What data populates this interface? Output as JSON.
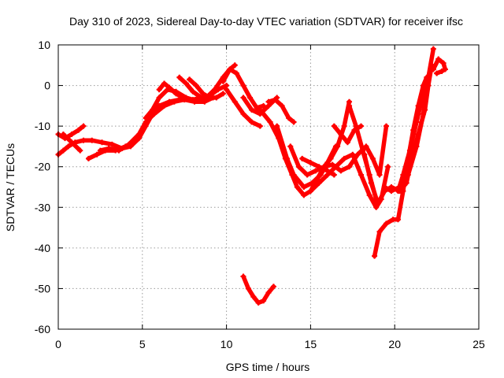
{
  "chart_data": {
    "type": "line",
    "title": "Day 310 of 2023, Sidereal Day-to-day VTEC variation (SDTVAR) for receiver ifsc",
    "xlabel": "GPS time / hours",
    "ylabel": "SDTVAR / TECUs",
    "xlim": [
      0,
      25
    ],
    "ylim": [
      -60,
      10
    ],
    "xticks": [
      0,
      5,
      10,
      15,
      20,
      25
    ],
    "yticks": [
      -60,
      -50,
      -40,
      -30,
      -20,
      -10,
      0,
      10
    ],
    "grid": true,
    "marker": "plus",
    "color": "#ff0000",
    "series": [
      {
        "x": [
          0,
          0.4,
          0.8,
          1.2,
          1.5
        ],
        "y": [
          -12,
          -13,
          -12,
          -11,
          -10
        ]
      },
      {
        "x": [
          0,
          0.3,
          0.6,
          1.0,
          1.5,
          2.0,
          2.6,
          3.2,
          3.8,
          4.3,
          4.8,
          5.2,
          5.6,
          6.0,
          6.6,
          7.2,
          7.8,
          8.3,
          8.8,
          9.3,
          9.8,
          10.2,
          10.5
        ],
        "y": [
          -17,
          -16,
          -15,
          -14,
          -13.5,
          -13.5,
          -14,
          -14.5,
          -15.5,
          -15,
          -13,
          -10,
          -7,
          -5,
          -4,
          -3.5,
          -3.5,
          -3.5,
          -3,
          -1,
          2,
          4,
          5
        ]
      },
      {
        "x": [
          0.3,
          0.8,
          1.3
        ],
        "y": [
          -12,
          -14,
          -16
        ]
      },
      {
        "x": [
          1.8,
          2.3,
          2.8,
          3.4,
          4.0
        ],
        "y": [
          -18,
          -17,
          -16,
          -16,
          -15
        ]
      },
      {
        "x": [
          2.5,
          3.0,
          3.6,
          4.2,
          4.8,
          5.2,
          5.7,
          6.3,
          6.9,
          7.5,
          8.1,
          8.7,
          9.2
        ],
        "y": [
          -16,
          -15.5,
          -16,
          -14.5,
          -12,
          -9,
          -7,
          -5,
          -4,
          -3.5,
          -4,
          -4,
          -3
        ]
      },
      {
        "x": [
          5.2,
          5.6,
          6.0,
          6.5,
          7.0,
          7.6,
          8.0,
          8.5
        ],
        "y": [
          -8,
          -6,
          -3,
          -1,
          -1.5,
          -3,
          -3.5,
          -3
        ]
      },
      {
        "x": [
          6.0,
          6.3,
          6.6,
          7.0,
          7.4
        ],
        "y": [
          -1,
          0.5,
          -0.5,
          -2,
          -3
        ]
      },
      {
        "x": [
          7.2,
          7.6,
          8.0,
          8.5,
          9.0,
          9.5,
          10.0
        ],
        "y": [
          2,
          0.5,
          -1.5,
          -3,
          -2.5,
          -1,
          0
        ]
      },
      {
        "x": [
          7.8,
          8.2,
          8.6,
          9.0,
          9.4,
          9.8
        ],
        "y": [
          1.5,
          0,
          -2,
          -3,
          -3,
          -2
        ]
      },
      {
        "x": [
          9.8,
          10.2,
          10.6,
          11.0,
          11.4,
          11.8,
          12.2
        ],
        "y": [
          1,
          4,
          3,
          0,
          -3,
          -5.5,
          -5
        ]
      },
      {
        "x": [
          10.0,
          10.5,
          11.0,
          11.5,
          12.0
        ],
        "y": [
          -1,
          -4,
          -7,
          -9,
          -10
        ]
      },
      {
        "x": [
          11.0,
          11.5,
          12.0,
          12.5,
          13.0
        ],
        "y": [
          -3,
          -6,
          -7,
          -5,
          -3
        ]
      },
      {
        "x": [
          12.5,
          12.9,
          13.3,
          13.7,
          14.0
        ],
        "y": [
          -4,
          -3.5,
          -5,
          -8,
          -9
        ]
      },
      {
        "x": [
          12.0,
          12.6,
          13.1,
          13.5,
          13.9,
          14.2,
          14.6,
          15.0,
          15.4,
          15.8,
          16.2,
          16.6,
          17.0,
          17.3
        ],
        "y": [
          -6,
          -9,
          -13,
          -18,
          -22,
          -25,
          -27,
          -26,
          -23,
          -20,
          -18,
          -15,
          -10,
          -4
        ]
      },
      {
        "x": [
          13.0,
          13.6,
          14.0,
          14.6,
          15.1,
          15.6,
          16.0,
          16.5
        ],
        "y": [
          -10,
          -18,
          -22,
          -25,
          -24,
          -22,
          -19,
          -15
        ]
      },
      {
        "x": [
          13.8,
          14.3,
          14.8,
          15.3,
          15.8,
          16.3,
          16.8,
          17.3,
          17.8,
          18.3,
          18.7,
          19.1,
          19.5
        ],
        "y": [
          -15,
          -20,
          -22,
          -21,
          -20,
          -19.5,
          -21,
          -20,
          -17,
          -15,
          -18,
          -22,
          -10
        ]
      },
      {
        "x": [
          14.5,
          15.0,
          15.5,
          16.0,
          16.4
        ],
        "y": [
          -18,
          -19,
          -20,
          -21,
          -22
        ]
      },
      {
        "x": [
          15.0,
          15.5,
          16.0,
          16.5,
          17.0,
          17.5,
          18.0,
          18.5,
          18.9,
          19.2,
          19.6
        ],
        "y": [
          -26,
          -24,
          -22,
          -20,
          -18,
          -17,
          -22,
          -27,
          -30,
          -28,
          -20
        ]
      },
      {
        "x": [
          16.4,
          16.8,
          17.2,
          17.6,
          18.0
        ],
        "y": [
          -10,
          -12,
          -14,
          -11,
          -10
        ]
      },
      {
        "x": [
          17.3,
          17.7,
          18.1,
          18.5,
          18.9
        ],
        "y": [
          -5,
          -10,
          -16,
          -22,
          -28
        ]
      },
      {
        "x": [
          18.2,
          18.6,
          19.0,
          19.4,
          19.8,
          20.3,
          20.7,
          21.0,
          21.4,
          21.8,
          22.0,
          22.2
        ],
        "y": [
          -17,
          -24,
          -29,
          -26,
          -25,
          -26,
          -24,
          -18,
          -12,
          -6,
          0,
          5
        ]
      },
      {
        "x": [
          19.4,
          19.8,
          20.3,
          20.8,
          21.3,
          21.7,
          22.0,
          22.3
        ],
        "y": [
          -25,
          -26,
          -25,
          -22,
          -15,
          -7,
          2,
          9
        ]
      },
      {
        "x": [
          18.8,
          19.1,
          19.5,
          19.9,
          20.2,
          20.5,
          20.8,
          21.1,
          21.4,
          21.7,
          21.9
        ],
        "y": [
          -42,
          -36,
          -34,
          -33,
          -33,
          -26,
          -18,
          -11,
          -5,
          0,
          2
        ]
      },
      {
        "x": [
          20.2,
          20.5,
          20.9,
          21.3,
          21.7,
          22.0
        ],
        "y": [
          -26,
          -22,
          -16,
          -9,
          -2,
          2
        ]
      },
      {
        "x": [
          22.3,
          22.6,
          22.9,
          23.0
        ],
        "y": [
          4,
          6.5,
          5.5,
          4
        ]
      },
      {
        "x": [
          22.5,
          22.8,
          23.0
        ],
        "y": [
          3,
          3.5,
          4
        ]
      },
      {
        "x": [
          11.0,
          11.3,
          11.6,
          11.9,
          12.2,
          12.5,
          12.8
        ],
        "y": [
          -47,
          -50,
          -52,
          -53.5,
          -53,
          -51,
          -49.5
        ]
      }
    ]
  }
}
